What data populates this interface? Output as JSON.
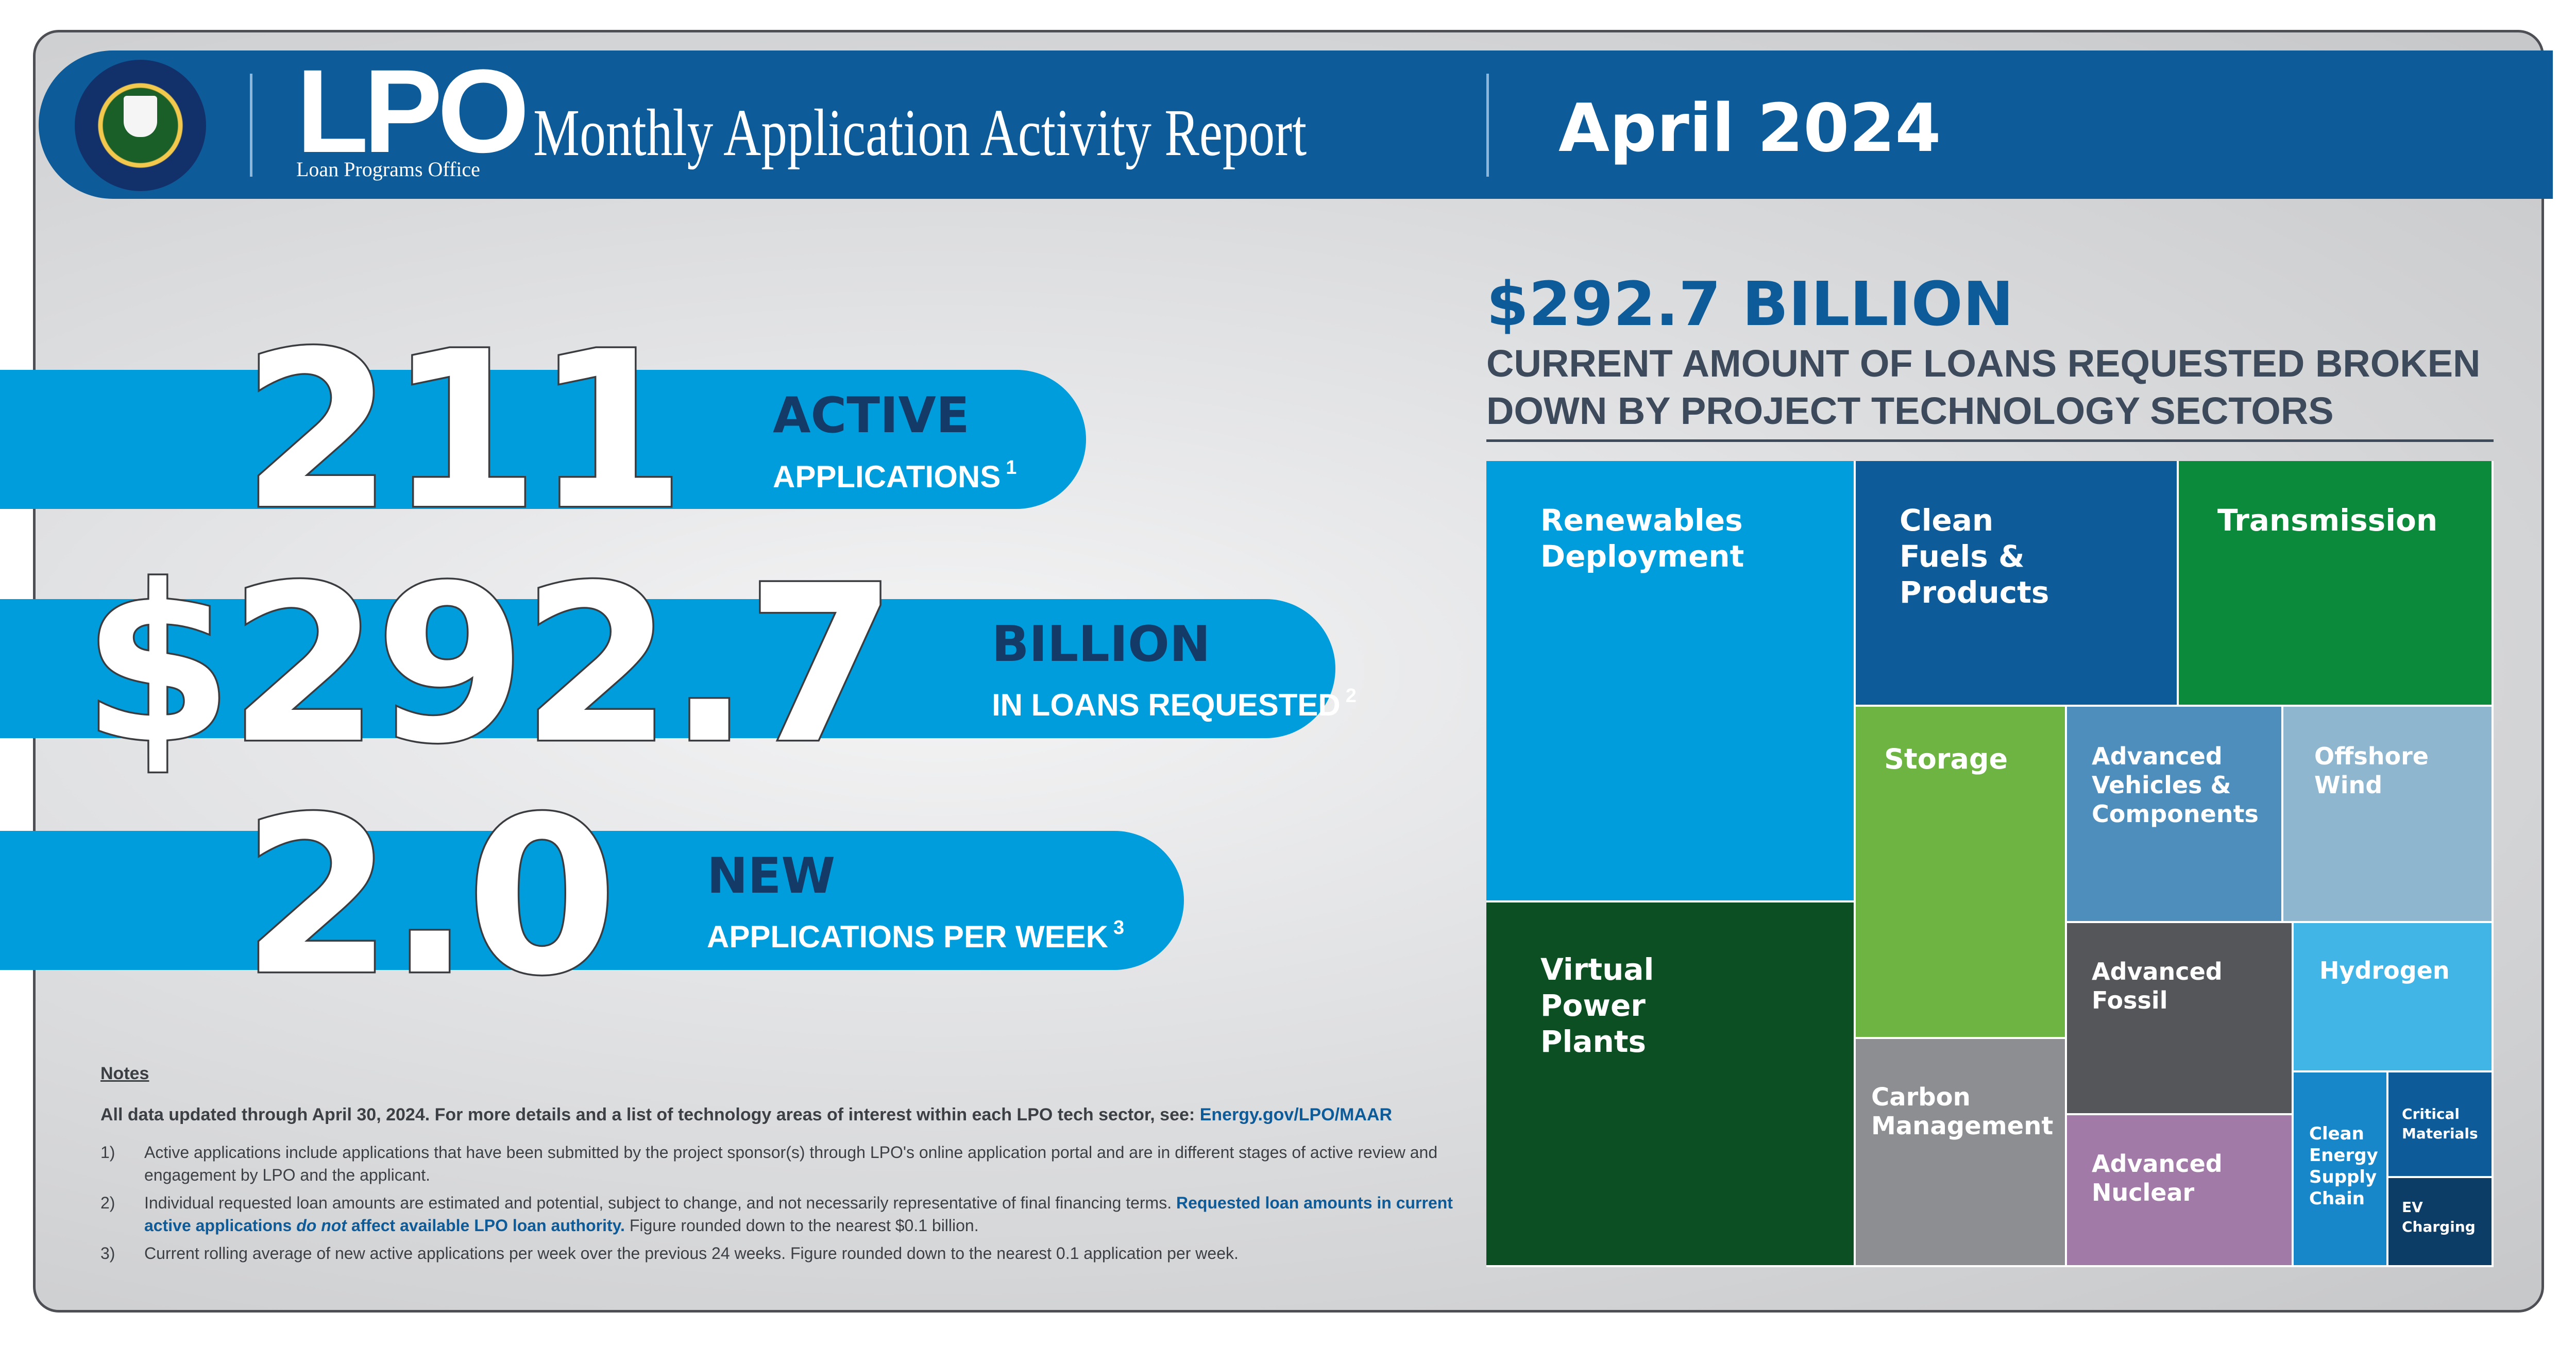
{
  "header": {
    "logo_main": "LPO",
    "logo_sub": "Loan Programs Office",
    "title": "Monthly Application Activity Report",
    "month": "April 2024"
  },
  "stats": [
    {
      "value": "211",
      "head": "ACTIVE",
      "sub": "APPLICATIONS",
      "note": "1"
    },
    {
      "value": "$292.7",
      "head": "BILLION",
      "sub": "IN LOANS REQUESTED",
      "note": "2"
    },
    {
      "value": "2.0",
      "head": "NEW",
      "sub": "APPLICATIONS PER WEEK",
      "note": "3"
    }
  ],
  "summary": {
    "total": "$292.7 BILLION",
    "subtitle_line1": "CURRENT AMOUNT OF LOANS REQUESTED BROKEN",
    "subtitle_line2": "DOWN BY PROJECT TECHNOLOGY SECTORS"
  },
  "sectors": [
    {
      "name": "Renewables Deployment",
      "lines": [
        "Renewables",
        "Deployment"
      ],
      "color": "#009ddd"
    },
    {
      "name": "Clean Fuels & Products",
      "lines": [
        "Clean",
        "Fuels &",
        "Products"
      ],
      "color": "#0d5b98"
    },
    {
      "name": "Transmission",
      "lines": [
        "Transmission"
      ],
      "color": "#0a8a3a"
    },
    {
      "name": "Virtual Power Plants",
      "lines": [
        "Virtual",
        "Power",
        "Plants"
      ],
      "color": "#0b4f22"
    },
    {
      "name": "Storage",
      "lines": [
        "Storage"
      ],
      "color": "#6db443"
    },
    {
      "name": "Advanced Vehicles & Components",
      "lines": [
        "Advanced",
        "Vehicles &",
        "Components"
      ],
      "color": "#4d8ebc"
    },
    {
      "name": "Offshore Wind",
      "lines": [
        "Offshore",
        "Wind"
      ],
      "color": "#8fb6cf"
    },
    {
      "name": "Carbon Management",
      "lines": [
        "Carbon",
        "Management"
      ],
      "color": "#8c8e91"
    },
    {
      "name": "Advanced Fossil",
      "lines": [
        "Advanced",
        "Fossil"
      ],
      "color": "#54565a"
    },
    {
      "name": "Hydrogen",
      "lines": [
        "Hydrogen"
      ],
      "color": "#41b6e6"
    },
    {
      "name": "Advanced Nuclear",
      "lines": [
        "Advanced",
        "Nuclear"
      ],
      "color": "#a17aa8"
    },
    {
      "name": "Clean Energy Supply Chain",
      "lines": [
        "Clean",
        "Energy",
        "Supply",
        "Chain"
      ],
      "color": "#1787c9"
    },
    {
      "name": "Critical Materials",
      "lines": [
        "Critical",
        "Materials"
      ],
      "color": "#0d5b98"
    },
    {
      "name": "EV Charging",
      "lines": [
        "EV",
        "Charging"
      ],
      "color": "#0c3d66"
    }
  ],
  "notes": {
    "title": "Notes",
    "intro": "All data updated through April 30, 2024. For more details and a list of technology areas of interest within each LPO tech sector, see:",
    "intro_link": "Energy.gov/LPO/MAAR",
    "items": [
      {
        "num": "1)",
        "text": "Active applications include applications that have been submitted by the project sponsor(s) through LPO's online application portal and are in different stages of active review and engagement by LPO and the applicant."
      },
      {
        "num": "2)",
        "text_a": "Individual requested loan amounts are estimated and potential, subject to change, and not necessarily representative of final financing terms.",
        "text_b": "Requested loan amounts in current active applications",
        "text_c": "do not",
        "text_d": "affect available LPO loan authority.",
        "text_e": "Figure rounded down to the nearest $0.1 billion."
      },
      {
        "num": "3)",
        "text": "Current rolling average of new active applications per week over the previous 24 weeks. Figure rounded down to the nearest 0.1 application per week."
      }
    ]
  }
}
